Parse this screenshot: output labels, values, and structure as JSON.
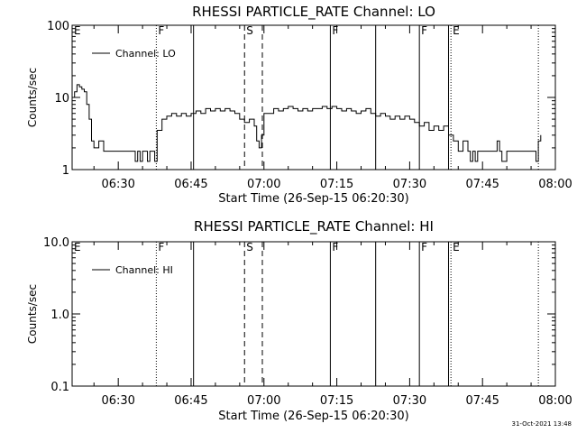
{
  "footer": {
    "date": "31-Oct-2021 13:48"
  },
  "chart_data": [
    {
      "type": "line",
      "title": "RHESSI PARTICLE_RATE Channel: LO",
      "xlabel": "Start Time (26-Sep-15 06:20:30)",
      "ylabel": "Counts/sec",
      "yscale": "log",
      "ylim": [
        1,
        100
      ],
      "xlim": [
        "06:20:30",
        "08:00:00"
      ],
      "x_ticks": [
        "06:30",
        "06:45",
        "07:00",
        "07:15",
        "07:30",
        "07:45",
        "08:00"
      ],
      "y_ticks": [
        "1",
        "10",
        "100"
      ],
      "legend": {
        "entries": [
          "Channel: LO"
        ],
        "placement": "top-left"
      },
      "markers": [
        {
          "label": "E",
          "time": "06:20:30",
          "style": "none"
        },
        {
          "label": "F",
          "time": "06:37:50",
          "style": "dotted"
        },
        {
          "label": "",
          "time": "06:45:30",
          "style": "solid"
        },
        {
          "label": "S",
          "time": "06:56:00",
          "style": "dashed"
        },
        {
          "label": "",
          "time": "06:59:40",
          "style": "dashed"
        },
        {
          "label": "F",
          "time": "07:13:40",
          "style": "solid"
        },
        {
          "label": "",
          "time": "07:23:00",
          "style": "solid"
        },
        {
          "label": "F",
          "time": "07:32:00",
          "style": "solid"
        },
        {
          "label": "",
          "time": "07:38:00",
          "style": "solid"
        },
        {
          "label": "E",
          "time": "07:38:30",
          "style": "dotted"
        },
        {
          "label": "",
          "time": "07:56:30",
          "style": "dotted"
        }
      ],
      "series": [
        {
          "name": "Channel: LO",
          "x": [
            "06:20:30",
            "06:21:00",
            "06:21:30",
            "06:22:00",
            "06:22:30",
            "06:23:00",
            "06:23:30",
            "06:24:00",
            "06:24:30",
            "06:25:00",
            "06:26:00",
            "06:27:00",
            "06:28:00",
            "06:29:00",
            "06:30:00",
            "06:31:00",
            "06:32:00",
            "06:32:30",
            "06:33:00",
            "06:33:30",
            "06:34:00",
            "06:34:30",
            "06:35:00",
            "06:35:30",
            "06:36:00",
            "06:36:30",
            "06:37:00",
            "06:37:30",
            "06:38:00",
            "06:39:00",
            "06:40:00",
            "06:41:00",
            "06:42:00",
            "06:43:00",
            "06:44:00",
            "06:45:00",
            "06:46:00",
            "06:47:00",
            "06:48:00",
            "06:49:00",
            "06:50:00",
            "06:51:00",
            "06:52:00",
            "06:53:00",
            "06:54:00",
            "06:55:00",
            "06:56:00",
            "06:57:00",
            "06:58:00",
            "06:58:30",
            "06:59:00",
            "06:59:30",
            "07:00:00",
            "07:01:00",
            "07:02:00",
            "07:03:00",
            "07:04:00",
            "07:05:00",
            "07:06:00",
            "07:07:00",
            "07:08:00",
            "07:09:00",
            "07:10:00",
            "07:11:00",
            "07:12:00",
            "07:13:00",
            "07:14:00",
            "07:15:00",
            "07:16:00",
            "07:17:00",
            "07:18:00",
            "07:19:00",
            "07:20:00",
            "07:21:00",
            "07:22:00",
            "07:23:00",
            "07:24:00",
            "07:25:00",
            "07:26:00",
            "07:27:00",
            "07:28:00",
            "07:29:00",
            "07:30:00",
            "07:31:00",
            "07:32:00",
            "07:33:00",
            "07:34:00",
            "07:35:00",
            "07:36:00",
            "07:37:00",
            "07:38:00",
            "07:39:00",
            "07:40:00",
            "07:41:00",
            "07:42:00",
            "07:42:30",
            "07:43:00",
            "07:43:30",
            "07:44:00",
            "07:45:00",
            "07:46:00",
            "07:47:00",
            "07:47:30",
            "07:48:00",
            "07:48:30",
            "07:49:00",
            "07:50:00",
            "07:51:00",
            "07:52:00",
            "07:53:00",
            "07:54:00",
            "07:55:00",
            "07:56:00",
            "07:56:30",
            "07:57:00"
          ],
          "y": [
            10,
            12,
            15,
            14,
            13,
            12,
            8,
            5,
            2.5,
            2,
            2.5,
            1.8,
            1.8,
            1.8,
            1.8,
            1.8,
            1.8,
            1.8,
            1.8,
            1.3,
            1.8,
            1.3,
            1.8,
            1.8,
            1.3,
            1.8,
            1.8,
            1.3,
            3.5,
            5,
            5.5,
            6,
            5.5,
            6,
            5.5,
            6,
            6.5,
            6,
            7,
            6.5,
            7,
            6.5,
            7,
            6.5,
            6,
            5,
            4.5,
            5,
            4,
            2.5,
            2,
            3,
            6,
            6,
            7,
            6.5,
            7,
            7.5,
            7,
            6.5,
            7,
            6.5,
            7,
            7,
            7.5,
            7,
            7.5,
            7,
            6.5,
            7,
            6.5,
            6,
            6.5,
            7,
            6,
            5.5,
            6,
            5.5,
            5,
            5.5,
            5,
            5.5,
            5,
            4.5,
            4,
            4.5,
            3.5,
            4,
            3.5,
            4,
            3,
            2.5,
            1.8,
            2.5,
            1.8,
            1.3,
            1.8,
            1.3,
            1.8,
            1.8,
            1.8,
            1.8,
            1.8,
            2.5,
            1.8,
            1.3,
            1.8,
            1.8,
            1.8,
            1.8,
            1.8,
            1.8,
            1.3,
            2.5,
            3
          ]
        }
      ]
    },
    {
      "type": "line",
      "title": "RHESSI PARTICLE_RATE Channel: HI",
      "xlabel": "Start Time (26-Sep-15 06:20:30)",
      "ylabel": "Counts/sec",
      "yscale": "log",
      "ylim": [
        0.1,
        10
      ],
      "xlim": [
        "06:20:30",
        "08:00:00"
      ],
      "x_ticks": [
        "06:30",
        "06:45",
        "07:00",
        "07:15",
        "07:30",
        "07:45",
        "08:00"
      ],
      "y_ticks": [
        "10.0",
        "1.0",
        "0.1"
      ],
      "legend": {
        "entries": [
          "Channel: HI"
        ],
        "placement": "top-left"
      },
      "markers": [
        {
          "label": "E",
          "time": "06:20:30",
          "style": "none"
        },
        {
          "label": "F",
          "time": "06:37:50",
          "style": "dotted"
        },
        {
          "label": "",
          "time": "06:45:30",
          "style": "solid"
        },
        {
          "label": "S",
          "time": "06:56:00",
          "style": "dashed"
        },
        {
          "label": "",
          "time": "06:59:40",
          "style": "dashed"
        },
        {
          "label": "F",
          "time": "07:13:40",
          "style": "solid"
        },
        {
          "label": "",
          "time": "07:23:00",
          "style": "solid"
        },
        {
          "label": "F",
          "time": "07:32:00",
          "style": "solid"
        },
        {
          "label": "",
          "time": "07:38:00",
          "style": "solid"
        },
        {
          "label": "E",
          "time": "07:38:30",
          "style": "dotted"
        },
        {
          "label": "",
          "time": "07:56:30",
          "style": "dotted"
        }
      ],
      "series": [
        {
          "name": "Channel: HI",
          "x": [],
          "y": []
        }
      ]
    }
  ]
}
